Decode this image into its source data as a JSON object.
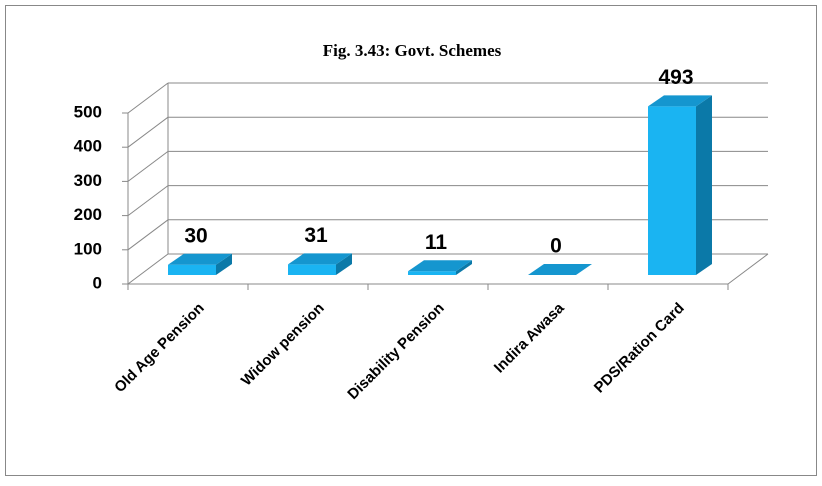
{
  "chart_data": {
    "type": "bar3d",
    "title": "Fig. 3.43: Govt. Schemes",
    "categories": [
      "Old Age Pension",
      "Widow pension",
      "Disability Pension",
      "Indira Awasa",
      "PDS/Ration Card"
    ],
    "values": [
      30,
      31,
      11,
      0,
      493
    ],
    "color": "#1ab4f2",
    "ylim": [
      0,
      500
    ],
    "yticks": [
      0,
      100,
      200,
      300,
      400,
      500
    ],
    "grid": true
  }
}
